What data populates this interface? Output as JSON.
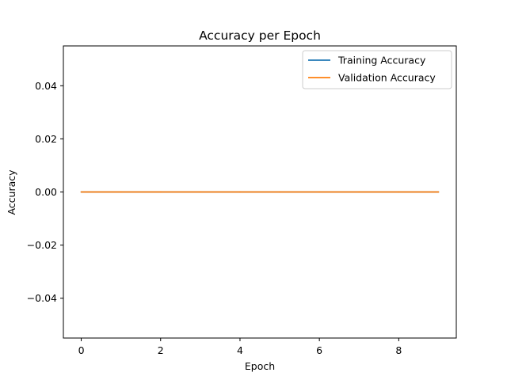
{
  "chart_data": {
    "type": "line",
    "title": "Accuracy per Epoch",
    "xlabel": "Epoch",
    "ylabel": "Accuracy",
    "x": [
      0,
      1,
      2,
      3,
      4,
      5,
      6,
      7,
      8,
      9
    ],
    "series": [
      {
        "name": "Training Accuracy",
        "color": "#1f77b4",
        "values": [
          0,
          0,
          0,
          0,
          0,
          0,
          0,
          0,
          0,
          0
        ]
      },
      {
        "name": "Validation Accuracy",
        "color": "#ff7f0e",
        "values": [
          0,
          0,
          0,
          0,
          0,
          0,
          0,
          0,
          0,
          0
        ]
      }
    ],
    "xlim": [
      -0.45,
      9.45
    ],
    "ylim": [
      -0.055,
      0.055
    ],
    "xticks": [
      0,
      2,
      4,
      6,
      8
    ],
    "xtick_labels": [
      "0",
      "2",
      "4",
      "6",
      "8"
    ],
    "yticks": [
      -0.04,
      -0.02,
      0.0,
      0.02,
      0.04
    ],
    "ytick_labels": [
      "−0.04",
      "−0.02",
      "0.00",
      "0.02",
      "0.04"
    ],
    "grid": false,
    "legend_position": "top-right"
  }
}
